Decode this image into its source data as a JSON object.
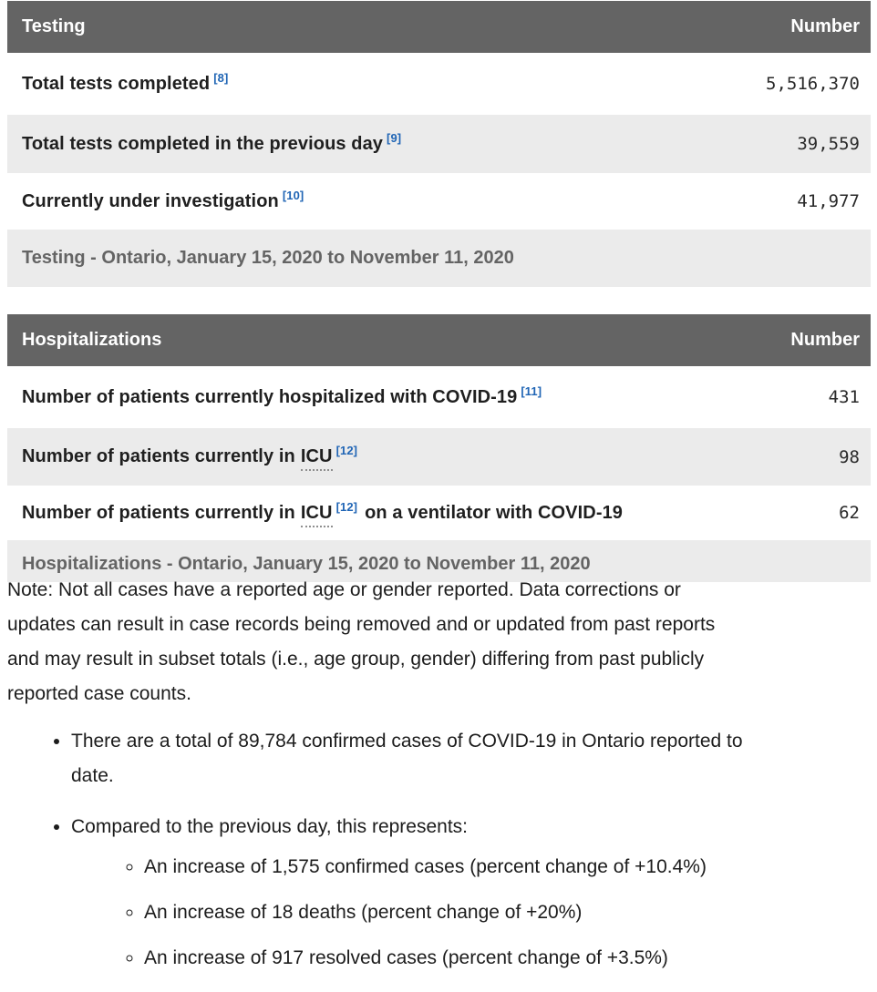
{
  "colors": {
    "header_bg": "#646464",
    "stripe_bg": "#ebebeb",
    "caption_text": "#646464",
    "footnote_link_blue": "#2065b5"
  },
  "testing_table": {
    "title": "Testing",
    "number_header": "Number",
    "rows": [
      {
        "label": "Total tests completed",
        "ref": "[8]",
        "value": "5,516,370"
      },
      {
        "label": "Total tests completed in the previous day",
        "ref": "[9]",
        "value": "39,559"
      },
      {
        "label": "Currently under investigation",
        "ref": "[10]",
        "value": "41,977"
      }
    ],
    "caption": "Testing - Ontario, January 15, 2020 to November 11, 2020"
  },
  "hospitalizations_table": {
    "title": "Hospitalizations",
    "number_header": "Number",
    "rows": [
      {
        "label": "Number of patients currently hospitalized with COVID-19",
        "ref": "[11]",
        "value": "431"
      },
      {
        "label_pre": "Number of patients currently in",
        "abbr": "ICU",
        "ref": "[12]",
        "label_post": "",
        "value": "98"
      },
      {
        "label_pre": "Number of patients currently in",
        "abbr": "ICU",
        "ref": "[12]",
        "label_post": "on a ventilator with COVID-19",
        "value": "62"
      }
    ],
    "caption": "Hospitalizations - Ontario, January 15, 2020 to November 11, 2020"
  },
  "note_lines": [
    "Note: Not all cases have a reported age or gender reported. Data corrections or",
    "updates can result in case records being removed and or updated from past reports",
    "and may result in subset totals (i.e., age group, gender) differing from past publicly",
    "reported case counts."
  ],
  "bullets": {
    "total_cases_lines": [
      "There are a total of 89,784 confirmed cases of COVID-19 in Ontario reported to",
      "date."
    ],
    "compared_intro": "Compared to the previous day, this represents:",
    "sub_items": [
      "An increase of 1,575 confirmed cases (percent change of +10.4%)",
      "An increase of 18 deaths (percent change of +20%)",
      "An increase of 917 resolved cases (percent change of +3.5%)"
    ]
  }
}
